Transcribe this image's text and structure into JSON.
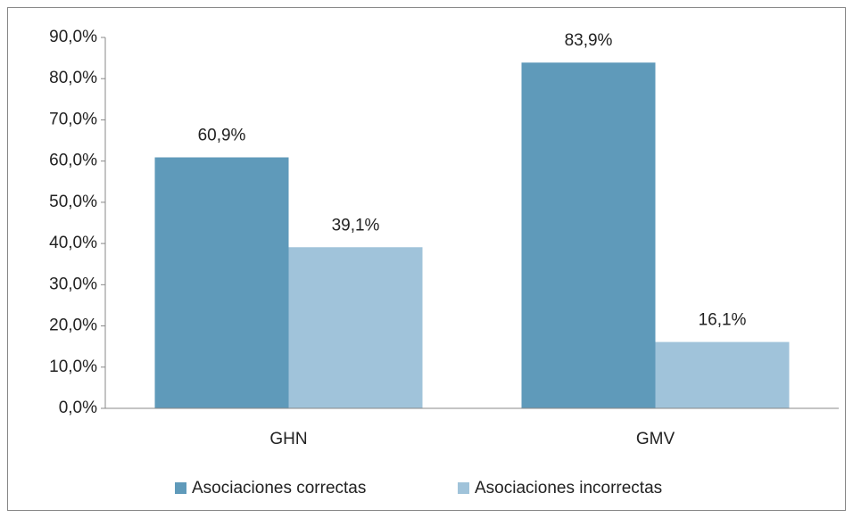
{
  "chart_data": {
    "type": "bar",
    "categories": [
      "GHN",
      "GMV"
    ],
    "series": [
      {
        "name": "Asociaciones correctas",
        "color": "#5f9aba",
        "values": [
          60.9,
          83.9
        ],
        "value_labels": [
          "60,9%",
          "83,9%"
        ]
      },
      {
        "name": "Asociaciones incorrectas",
        "color": "#a0c3da",
        "values": [
          39.1,
          16.1
        ],
        "value_labels": [
          "39,1%",
          "16,1%"
        ]
      }
    ],
    "ylim": [
      0,
      90
    ],
    "yticks": [
      {
        "value": 0,
        "label": "0,0%"
      },
      {
        "value": 10,
        "label": "10,0%"
      },
      {
        "value": 20,
        "label": "20,0%"
      },
      {
        "value": 30,
        "label": "30,0%"
      },
      {
        "value": 40,
        "label": "40,0%"
      },
      {
        "value": 50,
        "label": "50,0%"
      },
      {
        "value": 60,
        "label": "60,0%"
      },
      {
        "value": 70,
        "label": "70,0%"
      },
      {
        "value": 80,
        "label": "80,0%"
      },
      {
        "value": 90,
        "label": "90,0%"
      }
    ],
    "grid": false,
    "legend": "bottom"
  }
}
